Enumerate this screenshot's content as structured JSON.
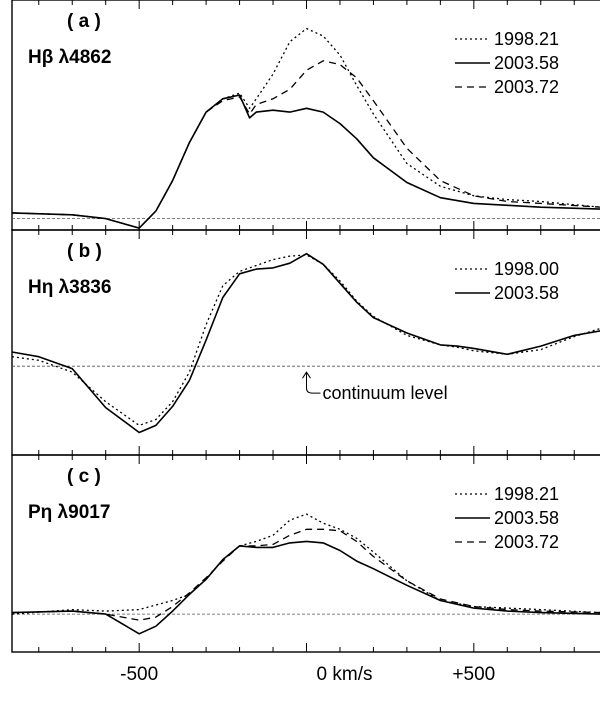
{
  "chart_data": {
    "type": "line",
    "xlabel": "km/s",
    "xlim": [
      -880,
      880
    ],
    "x_ticks": [
      -500,
      0,
      500
    ],
    "x_tick_labels": [
      "-500",
      "0",
      "+500"
    ],
    "x_axis_label": "0  km/s",
    "grid": false,
    "legend_placement": "top-right",
    "panels": [
      {
        "panel_label": "( a )",
        "line_label": "Hβ  λ4862",
        "ylim": [
          -0.06,
          1.15
        ],
        "continuum": 0,
        "legend": [
          "1998.21",
          "2003.58",
          "2003.72"
        ],
        "series": [
          {
            "name": "1998.21",
            "style": "dotted",
            "x": [
              -880,
              -700,
              -600,
              -500,
              -450,
              -400,
              -350,
              -300,
              -250,
              -200,
              -170,
              -150,
              -100,
              -50,
              0,
              50,
              100,
              150,
              200,
              300,
              400,
              500,
              600,
              700,
              880
            ],
            "y": [
              0.03,
              0.02,
              0.0,
              -0.05,
              0.04,
              0.2,
              0.4,
              0.56,
              0.63,
              0.66,
              0.58,
              0.63,
              0.76,
              0.93,
              1.0,
              0.96,
              0.86,
              0.7,
              0.55,
              0.29,
              0.17,
              0.12,
              0.1,
              0.09,
              0.06
            ]
          },
          {
            "name": "2003.58",
            "style": "solid",
            "x": [
              -880,
              -700,
              -600,
              -500,
              -450,
              -400,
              -350,
              -300,
              -250,
              -200,
              -170,
              -150,
              -100,
              -50,
              0,
              50,
              100,
              150,
              200,
              300,
              400,
              500,
              600,
              700,
              880
            ],
            "y": [
              0.03,
              0.02,
              0.0,
              -0.05,
              0.04,
              0.2,
              0.4,
              0.56,
              0.63,
              0.65,
              0.53,
              0.56,
              0.57,
              0.56,
              0.58,
              0.56,
              0.5,
              0.42,
              0.32,
              0.19,
              0.11,
              0.08,
              0.07,
              0.06,
              0.05
            ]
          },
          {
            "name": "2003.72",
            "style": "dashed",
            "x": [
              -880,
              -700,
              -600,
              -500,
              -450,
              -400,
              -350,
              -300,
              -250,
              -200,
              -170,
              -150,
              -100,
              -50,
              0,
              50,
              100,
              150,
              200,
              300,
              400,
              500,
              600,
              700,
              880
            ],
            "y": [
              0.03,
              0.02,
              0.0,
              -0.05,
              0.04,
              0.2,
              0.4,
              0.56,
              0.62,
              0.64,
              0.55,
              0.6,
              0.63,
              0.68,
              0.78,
              0.83,
              0.81,
              0.74,
              0.62,
              0.37,
              0.2,
              0.12,
              0.09,
              0.08,
              0.06
            ]
          }
        ]
      },
      {
        "panel_label": "( b )",
        "line_label": "Hη  λ3836",
        "ylim": [
          -0.75,
          1.15
        ],
        "continuum": 0,
        "legend": [
          "1998.00",
          "2003.58"
        ],
        "annotation": "continuum level",
        "series": [
          {
            "name": "1998.00",
            "style": "dotted",
            "x": [
              -880,
              -800,
              -700,
              -600,
              -500,
              -450,
              -400,
              -350,
              -300,
              -250,
              -200,
              -150,
              -100,
              -50,
              0,
              50,
              100,
              150,
              200,
              300,
              400,
              450,
              500,
              600,
              700,
              800,
              880
            ],
            "y": [
              0.08,
              0.05,
              -0.05,
              -0.3,
              -0.5,
              -0.45,
              -0.3,
              -0.05,
              0.35,
              0.68,
              0.8,
              0.85,
              0.9,
              0.93,
              0.94,
              0.86,
              0.72,
              0.55,
              0.42,
              0.26,
              0.18,
              0.16,
              0.13,
              0.1,
              0.14,
              0.25,
              0.32
            ]
          },
          {
            "name": "2003.58",
            "style": "solid",
            "x": [
              -880,
              -800,
              -700,
              -600,
              -500,
              -450,
              -400,
              -350,
              -300,
              -250,
              -200,
              -150,
              -100,
              -50,
              0,
              50,
              100,
              150,
              200,
              300,
              400,
              450,
              500,
              600,
              700,
              800,
              880
            ],
            "y": [
              0.12,
              0.08,
              -0.02,
              -0.35,
              -0.56,
              -0.5,
              -0.34,
              -0.12,
              0.22,
              0.58,
              0.78,
              0.82,
              0.83,
              0.87,
              0.95,
              0.86,
              0.7,
              0.54,
              0.41,
              0.28,
              0.18,
              0.17,
              0.15,
              0.1,
              0.17,
              0.26,
              0.3
            ]
          }
        ]
      },
      {
        "panel_label": "( c )",
        "line_label": "Pη  λ9017",
        "ylim": [
          -0.25,
          1.05
        ],
        "continuum": 0,
        "legend": [
          "1998.21",
          "2003.58",
          "2003.72"
        ],
        "series": [
          {
            "name": "1998.21",
            "style": "dotted",
            "x": [
              -880,
              -700,
              -600,
              -500,
              -450,
              -400,
              -350,
              -300,
              -250,
              -200,
              -150,
              -100,
              -50,
              0,
              50,
              100,
              150,
              200,
              300,
              400,
              500,
              600,
              700,
              880
            ],
            "y": [
              0.0,
              0.03,
              0.02,
              0.03,
              0.06,
              0.09,
              0.13,
              0.23,
              0.36,
              0.45,
              0.48,
              0.52,
              0.62,
              0.66,
              0.6,
              0.56,
              0.5,
              0.41,
              0.22,
              0.09,
              0.05,
              0.04,
              0.03,
              0.01
            ]
          },
          {
            "name": "2003.58",
            "style": "solid",
            "x": [
              -880,
              -700,
              -600,
              -500,
              -450,
              -400,
              -350,
              -300,
              -250,
              -200,
              -150,
              -100,
              -50,
              0,
              50,
              100,
              150,
              200,
              300,
              400,
              500,
              600,
              700,
              880
            ],
            "y": [
              0.01,
              0.02,
              0.0,
              -0.13,
              -0.08,
              0.02,
              0.13,
              0.23,
              0.36,
              0.45,
              0.44,
              0.44,
              0.47,
              0.48,
              0.47,
              0.42,
              0.35,
              0.3,
              0.19,
              0.09,
              0.04,
              0.02,
              0.01,
              0.0
            ]
          },
          {
            "name": "2003.72",
            "style": "dashed",
            "x": [
              -880,
              -700,
              -600,
              -500,
              -450,
              -400,
              -350,
              -300,
              -250,
              -200,
              -150,
              -100,
              -50,
              0,
              50,
              100,
              150,
              200,
              300,
              400,
              500,
              600,
              700,
              880
            ],
            "y": [
              0.01,
              0.02,
              0.0,
              -0.04,
              -0.02,
              0.05,
              0.14,
              0.24,
              0.35,
              0.45,
              0.45,
              0.46,
              0.52,
              0.56,
              0.56,
              0.55,
              0.48,
              0.38,
              0.22,
              0.1,
              0.05,
              0.03,
              0.02,
              0.01
            ]
          }
        ]
      }
    ]
  }
}
